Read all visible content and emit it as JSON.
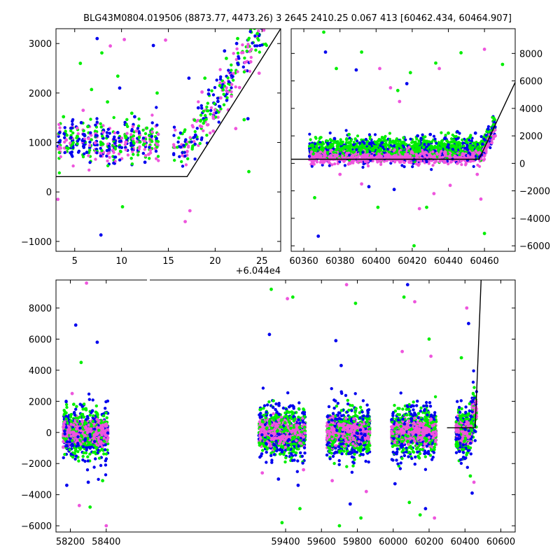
{
  "title": "BLG43M0804.019506 (8873.77, 4473.26)   3 2645 2410.25 0.067 413 [60462.434, 60464.907]",
  "colors": {
    "c1": "#0000ee",
    "c2": "#00ee00",
    "c3": "#ee55dd",
    "model": "#000000"
  },
  "chart_data": [
    {
      "type": "scatter",
      "panel": "zoom-peak",
      "xlim": [
        3,
        27
      ],
      "ylim": [
        -1200,
        3300
      ],
      "x_offset_label": "+6.044e4",
      "xticks": [
        5,
        10,
        15,
        20,
        25
      ],
      "yticks": [
        -1000,
        0,
        1000,
        2000,
        3000
      ],
      "yaxis_side": "left",
      "series": [
        {
          "color": "#00ee00",
          "points": [
            [
              3.8,
              1520
            ],
            [
              4.3,
              880
            ],
            [
              5.6,
              2600
            ],
            [
              6.4,
              1320
            ],
            [
              7.9,
              2810
            ],
            [
              9.6,
              2340
            ],
            [
              11.1,
              1590
            ],
            [
              12.7,
              1290
            ],
            [
              13.8,
              2000
            ],
            [
              17.8,
              1450
            ],
            [
              18.9,
              2300
            ],
            [
              20.5,
              2150
            ],
            [
              21.2,
              2700
            ],
            [
              22.4,
              3100
            ],
            [
              23.1,
              1460
            ],
            [
              23.6,
              410
            ],
            [
              24.5,
              3200
            ],
            [
              10.1,
              -300
            ],
            [
              6.8,
              2070
            ],
            [
              8.5,
              1820
            ]
          ]
        },
        {
          "color": "#0000ee",
          "points": [
            [
              3.4,
              1200
            ],
            [
              4.6,
              1100
            ],
            [
              5.7,
              1400
            ],
            [
              6.3,
              800
            ],
            [
              7.4,
              3100
            ],
            [
              8.7,
              860
            ],
            [
              9.8,
              2100
            ],
            [
              11.4,
              1520
            ],
            [
              12.5,
              600
            ],
            [
              13.4,
              2960
            ],
            [
              17.2,
              2300
            ],
            [
              18.2,
              1700
            ],
            [
              19.3,
              1980
            ],
            [
              20.3,
              1830
            ],
            [
              21.0,
              2850
            ],
            [
              22.3,
              3000
            ],
            [
              23.5,
              1480
            ],
            [
              17.9,
              1150
            ],
            [
              7.8,
              -870
            ],
            [
              9.6,
              1200
            ]
          ]
        },
        {
          "color": "#ee55dd",
          "points": [
            [
              3.2,
              -150
            ],
            [
              4.1,
              1050
            ],
            [
              5.9,
              1650
            ],
            [
              7.2,
              990
            ],
            [
              8.8,
              2950
            ],
            [
              10.3,
              3080
            ],
            [
              11.6,
              1230
            ],
            [
              12.9,
              760
            ],
            [
              14.7,
              3070
            ],
            [
              16.8,
              -600
            ],
            [
              17.3,
              -380
            ],
            [
              18.6,
              2020
            ],
            [
              19.8,
              1230
            ],
            [
              21.4,
              1660
            ],
            [
              22.6,
              2110
            ],
            [
              23.8,
              2630
            ],
            [
              24.7,
              2400
            ],
            [
              25.2,
              3270
            ],
            [
              20.6,
              1900
            ],
            [
              22.2,
              1280
            ]
          ]
        }
      ],
      "model": [
        [
          3,
          310
        ],
        [
          17,
          310
        ],
        [
          27,
          3300
        ]
      ]
    },
    {
      "type": "scatter",
      "panel": "peak-season",
      "xlim": [
        60353,
        60477
      ],
      "ylim": [
        -6400,
        9800
      ],
      "xticks": [
        60360,
        60380,
        60400,
        60420,
        60440,
        60460
      ],
      "yticks": [
        -6000,
        -4000,
        -2000,
        0,
        2000,
        4000,
        6000,
        8000
      ],
      "yaxis_side": "right",
      "series": [
        {
          "color": "#00ee00",
          "points": [
            [
              60371,
              9550
            ],
            [
              60378,
              6900
            ],
            [
              60392,
              8100
            ],
            [
              60419,
              6600
            ],
            [
              60428,
              -3200
            ],
            [
              60447,
              8050
            ],
            [
              60366,
              -2500
            ],
            [
              60401,
              -3200
            ],
            [
              60421,
              -6000
            ],
            [
              60433,
              7300
            ],
            [
              60460,
              -5100
            ],
            [
              60412,
              5300
            ],
            [
              60385,
              2100
            ],
            [
              60440,
              2200
            ],
            [
              60452,
              1900
            ],
            [
              60470,
              7200
            ]
          ]
        },
        {
          "color": "#0000ee",
          "points": [
            [
              60372,
              8100
            ],
            [
              60389,
              6800
            ],
            [
              60396,
              -1700
            ],
            [
              60417,
              5800
            ],
            [
              60438,
              1800
            ],
            [
              60455,
              2200
            ],
            [
              60462,
              2500
            ],
            [
              60368,
              -5300
            ],
            [
              60410,
              -1900
            ],
            [
              60430,
              2100
            ],
            [
              60398,
              1500
            ],
            [
              60445,
              2300
            ],
            [
              60377,
              1800
            ],
            [
              60423,
              2000
            ],
            [
              60459,
              1400
            ],
            [
              60450,
              1100
            ]
          ]
        },
        {
          "color": "#ee55dd",
          "points": [
            [
              60402,
              6900
            ],
            [
              60413,
              4500
            ],
            [
              60424,
              -3300
            ],
            [
              60435,
              6900
            ],
            [
              60441,
              -1600
            ],
            [
              60460,
              8300
            ],
            [
              60466,
              2000
            ],
            [
              60458,
              -2600
            ],
            [
              60380,
              -800
            ],
            [
              60392,
              -1500
            ],
            [
              60420,
              800
            ],
            [
              60448,
              700
            ],
            [
              60464,
              1500
            ],
            [
              60408,
              5500
            ],
            [
              60456,
              -800
            ],
            [
              60432,
              -2200
            ]
          ]
        }
      ],
      "model": [
        [
          60353,
          300
        ],
        [
          60457,
          300
        ],
        [
          60477,
          5900
        ]
      ]
    },
    {
      "type": "scatter",
      "panel": "full-lightcurve",
      "xlim": [
        58120,
        60680
      ],
      "ylim": [
        -6400,
        9800
      ],
      "xticks": [
        58200,
        58400,
        59400,
        59600,
        59800,
        60000,
        60200,
        60400,
        60600
      ],
      "yticks": [
        -6000,
        -4000,
        -2000,
        0,
        2000,
        4000,
        6000,
        8000
      ],
      "yaxis_side": "left",
      "seasons": [
        [
          58160,
          58410
        ],
        [
          59250,
          59510
        ],
        [
          59630,
          59870
        ],
        [
          59990,
          60240
        ],
        [
          60350,
          60465
        ]
      ],
      "series": [
        {
          "color": "#00ee00",
          "points": [
            [
              58260,
              4500
            ],
            [
              58310,
              -4800
            ],
            [
              59320,
              9200
            ],
            [
              59440,
              8700
            ],
            [
              59380,
              -5800
            ],
            [
              59700,
              -6000
            ],
            [
              59790,
              8300
            ],
            [
              60060,
              8700
            ],
            [
              60150,
              -5300
            ],
            [
              60200,
              6000
            ],
            [
              60380,
              4800
            ],
            [
              60430,
              -2800
            ],
            [
              58380,
              -3100
            ],
            [
              59480,
              -4900
            ],
            [
              59820,
              -5500
            ],
            [
              60090,
              -4500
            ]
          ]
        },
        {
          "color": "#0000ee",
          "points": [
            [
              58230,
              6900
            ],
            [
              58350,
              5800
            ],
            [
              59310,
              6300
            ],
            [
              59470,
              -3400
            ],
            [
              59680,
              5900
            ],
            [
              59760,
              -4600
            ],
            [
              60080,
              9500
            ],
            [
              60180,
              -4900
            ],
            [
              60420,
              7000
            ],
            [
              60440,
              -3900
            ],
            [
              58300,
              -3200
            ],
            [
              59360,
              -3000
            ],
            [
              59710,
              4300
            ],
            [
              60010,
              -3300
            ],
            [
              60390,
              -800
            ],
            [
              58180,
              -3400
            ]
          ]
        },
        {
          "color": "#ee55dd",
          "points": [
            [
              58290,
              9600
            ],
            [
              58400,
              -6000
            ],
            [
              59410,
              8600
            ],
            [
              59500,
              -2400
            ],
            [
              59740,
              9500
            ],
            [
              59850,
              -3800
            ],
            [
              60120,
              8400
            ],
            [
              60230,
              -5500
            ],
            [
              60410,
              8000
            ],
            [
              60450,
              -3200
            ],
            [
              58250,
              -4700
            ],
            [
              59270,
              -2600
            ],
            [
              59660,
              -3100
            ],
            [
              60050,
              5200
            ],
            [
              60210,
              4900
            ],
            [
              58210,
              2500
            ]
          ]
        }
      ],
      "model": [
        [
          60300,
          300
        ],
        [
          60457,
          300
        ],
        [
          60490,
          9800
        ]
      ]
    }
  ]
}
